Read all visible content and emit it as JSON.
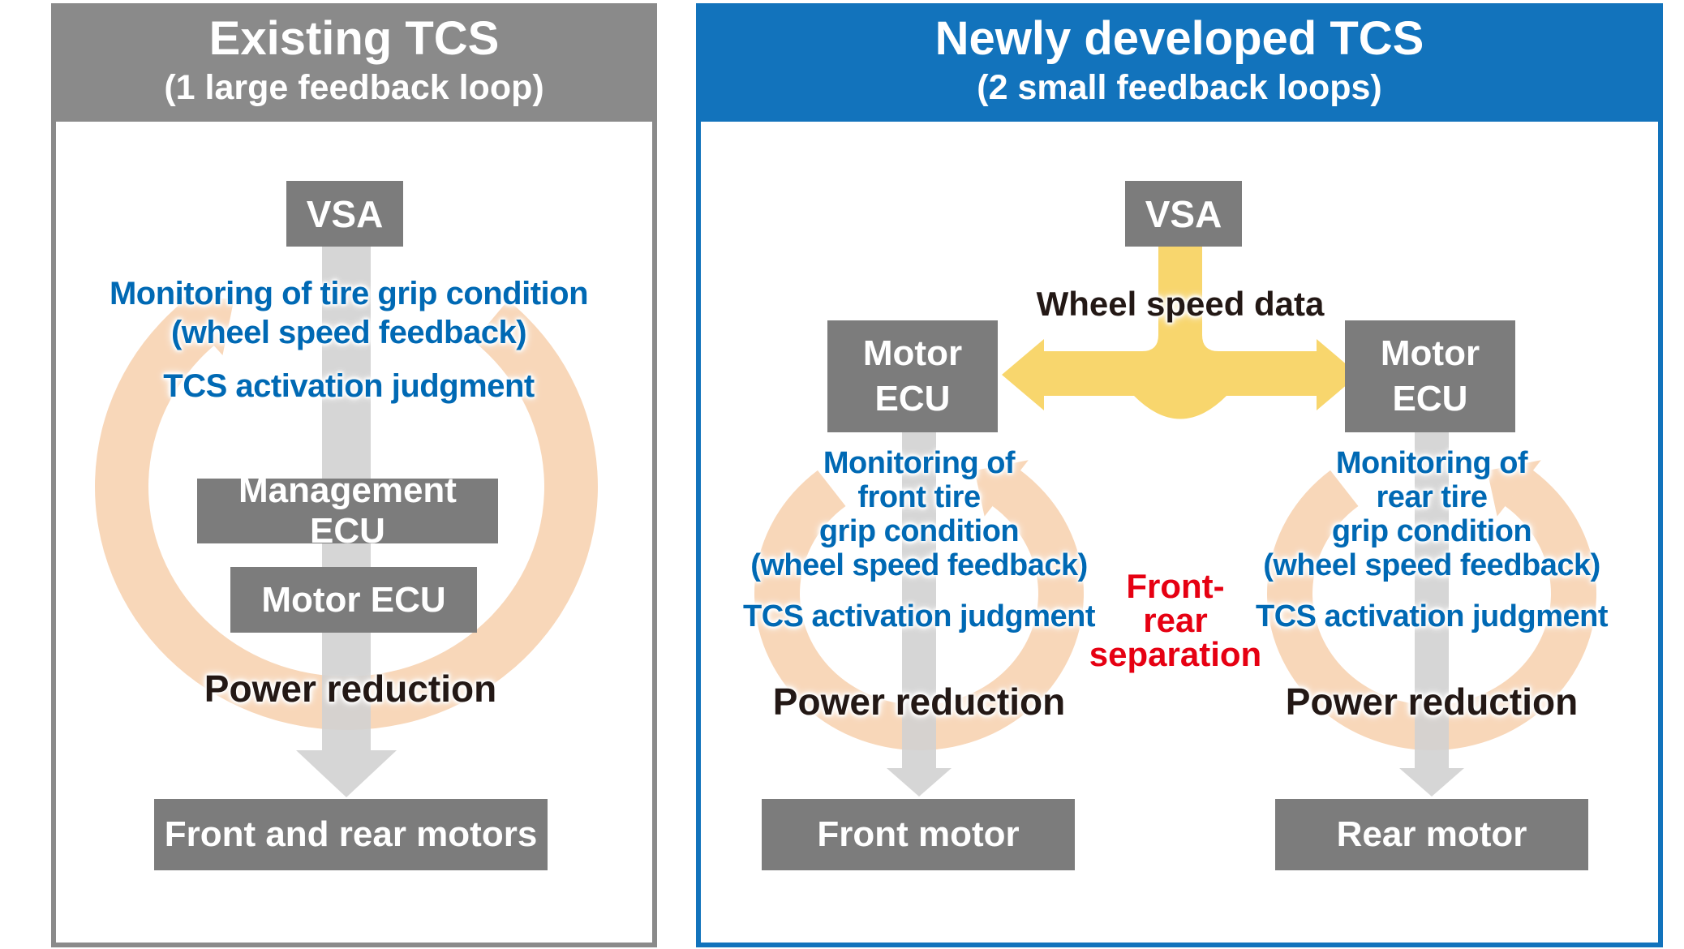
{
  "colors": {
    "panel_gray": "#8a8a8a",
    "panel_blue": "#1273bc",
    "box_gray": "#7c7c7c",
    "text_blue": "#0069b4",
    "text_red": "#e60012",
    "text_black": "#231815",
    "ring_peach": "#f8d7b9",
    "arrow_gray": "#d2d2d2",
    "arrow_yellow": "#f8d66d"
  },
  "left_panel": {
    "title": "Existing TCS",
    "subtitle": "(1 large feedback loop)",
    "vsa": "VSA",
    "monitoring": "Monitoring of tire grip condition\n(wheel speed feedback)",
    "judgment": "TCS activation judgment",
    "management_ecu": "Management ECU",
    "motor_ecu": "Motor ECU",
    "power": "Power reduction",
    "motors": "Front and rear motors"
  },
  "right_panel": {
    "title": "Newly developed TCS",
    "subtitle": "(2 small feedback loops)",
    "vsa": "VSA",
    "wheel_speed": "Wheel speed data",
    "separation": "Front-\nrear\nseparation",
    "front": {
      "ecu": "Motor\nECU",
      "monitoring": "Monitoring of\nfront tire\ngrip condition\n(wheel speed feedback)",
      "judgment": "TCS activation judgment",
      "power": "Power reduction",
      "motor": "Front motor"
    },
    "rear": {
      "ecu": "Motor\nECU",
      "monitoring": "Monitoring of\nrear tire\ngrip condition\n(wheel speed feedback)",
      "judgment": "TCS activation judgment",
      "power": "Power reduction",
      "motor": "Rear motor"
    }
  }
}
